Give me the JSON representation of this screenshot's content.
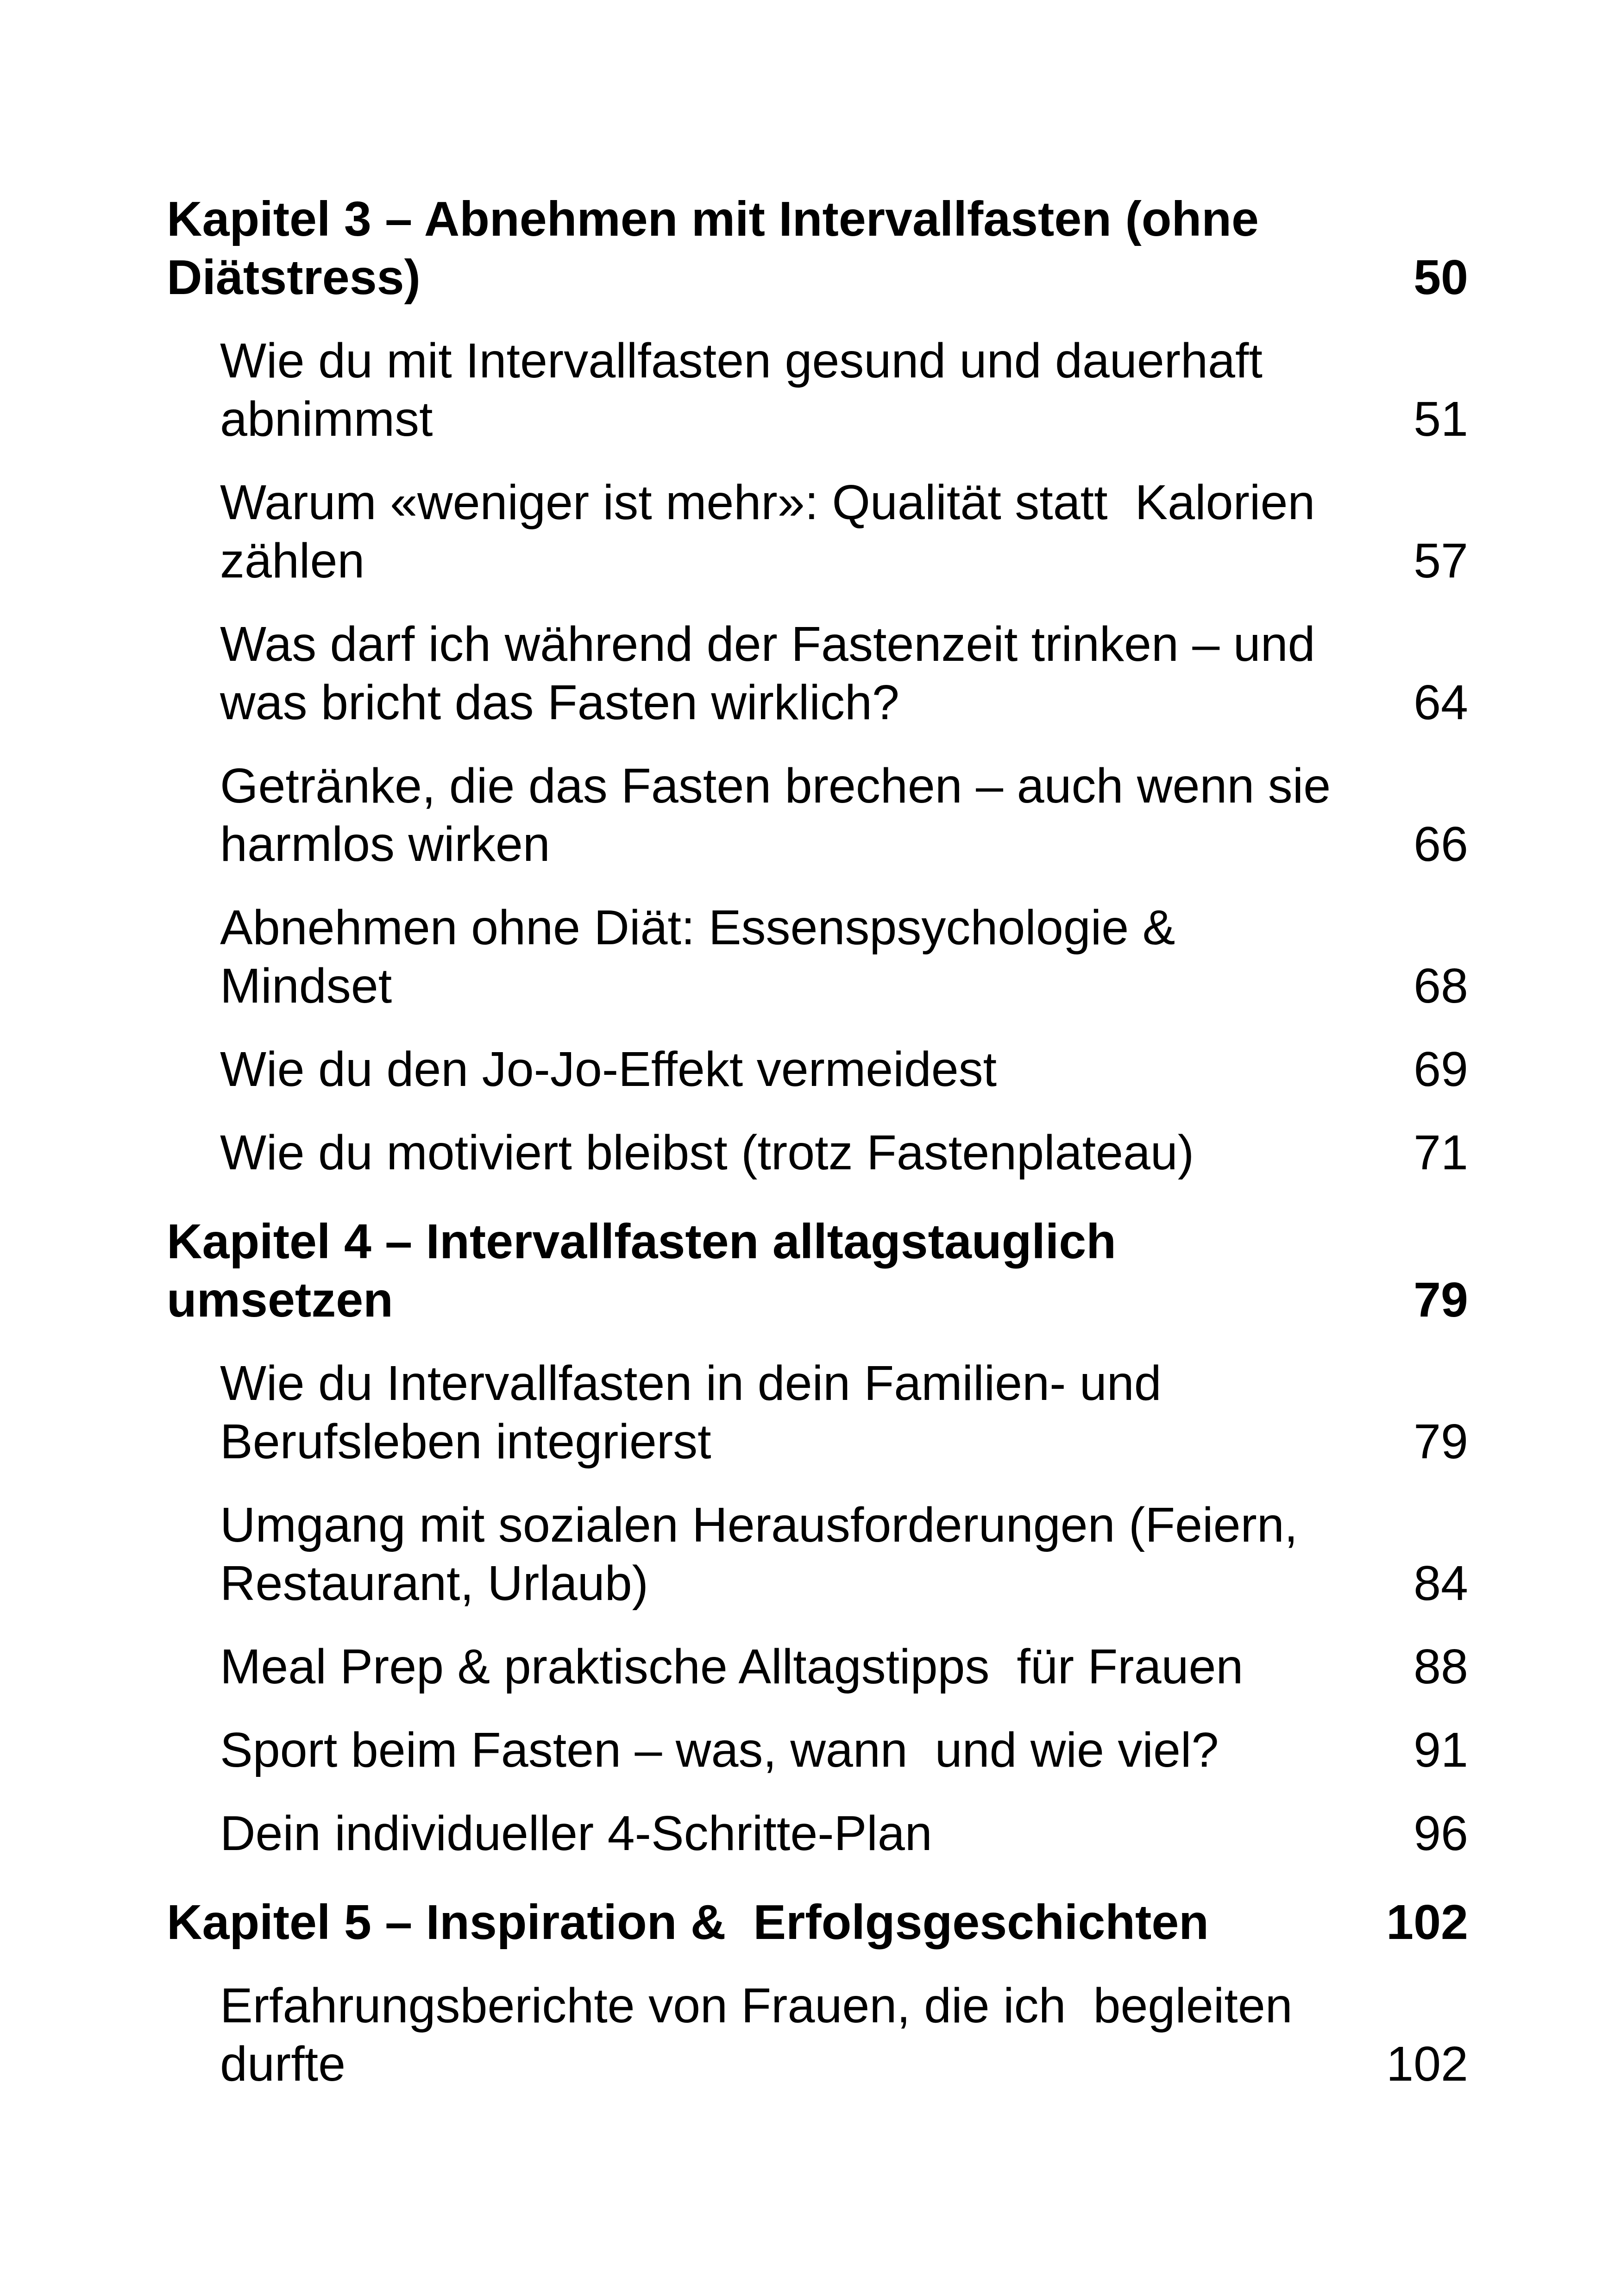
{
  "page": {
    "background_color": "#ffffff",
    "text_color": "#000000"
  },
  "toc": {
    "entries": [
      {
        "type": "chapter",
        "lines": [
          "Kapitel 3 – Abnehmen mit Intervallfasten (ohne",
          "Diätstress)"
        ],
        "page": "50"
      },
      {
        "type": "section",
        "lines": [
          "Wie du mit Intervallfasten gesund und dauerhaft",
          "abnimmst"
        ],
        "page": "51"
      },
      {
        "type": "section",
        "lines": [
          "Warum «weniger ist mehr»: Qualität statt  Kalorien",
          "zählen"
        ],
        "page": "57"
      },
      {
        "type": "section",
        "lines": [
          "Was darf ich während der Fastenzeit trinken – und",
          "was bricht das Fasten wirklich?"
        ],
        "page": "64"
      },
      {
        "type": "section",
        "lines": [
          "Getränke, die das Fasten brechen – auch wenn sie",
          "harmlos wirken"
        ],
        "page": "66"
      },
      {
        "type": "section",
        "lines": [
          "Abnehmen ohne Diät: Essenspsychologie &",
          "Mindset"
        ],
        "page": "68"
      },
      {
        "type": "section",
        "lines": [
          "Wie du den Jo-Jo-Effekt vermeidest"
        ],
        "page": "69"
      },
      {
        "type": "section",
        "lines": [
          "Wie du motiviert bleibst (trotz Fastenplateau)"
        ],
        "page": "71"
      },
      {
        "type": "chapter",
        "lines": [
          "Kapitel 4 – Intervallfasten alltagstauglich",
          "umsetzen"
        ],
        "page": "79"
      },
      {
        "type": "section",
        "lines": [
          "Wie du Intervallfasten in dein Familien- und",
          "Berufsleben integrierst"
        ],
        "page": "79"
      },
      {
        "type": "section",
        "lines": [
          "Umgang mit sozialen Herausforderungen (Feiern,",
          "Restaurant, Urlaub)"
        ],
        "page": "84"
      },
      {
        "type": "section",
        "lines": [
          "Meal Prep & praktische Alltagstipps  für Frauen"
        ],
        "page": "88"
      },
      {
        "type": "section",
        "lines": [
          "Sport beim Fasten – was, wann  und wie viel?"
        ],
        "page": "91"
      },
      {
        "type": "section",
        "lines": [
          "Dein individueller 4-Schritte-Plan"
        ],
        "page": "96"
      },
      {
        "type": "chapter",
        "lines": [
          "Kapitel 5 – Inspiration &  Erfolgsgeschichten"
        ],
        "page": "102"
      },
      {
        "type": "section",
        "lines": [
          "Erfahrungsberichte von Frauen, die ich  begleiten",
          "durfte"
        ],
        "page": "102"
      }
    ]
  }
}
